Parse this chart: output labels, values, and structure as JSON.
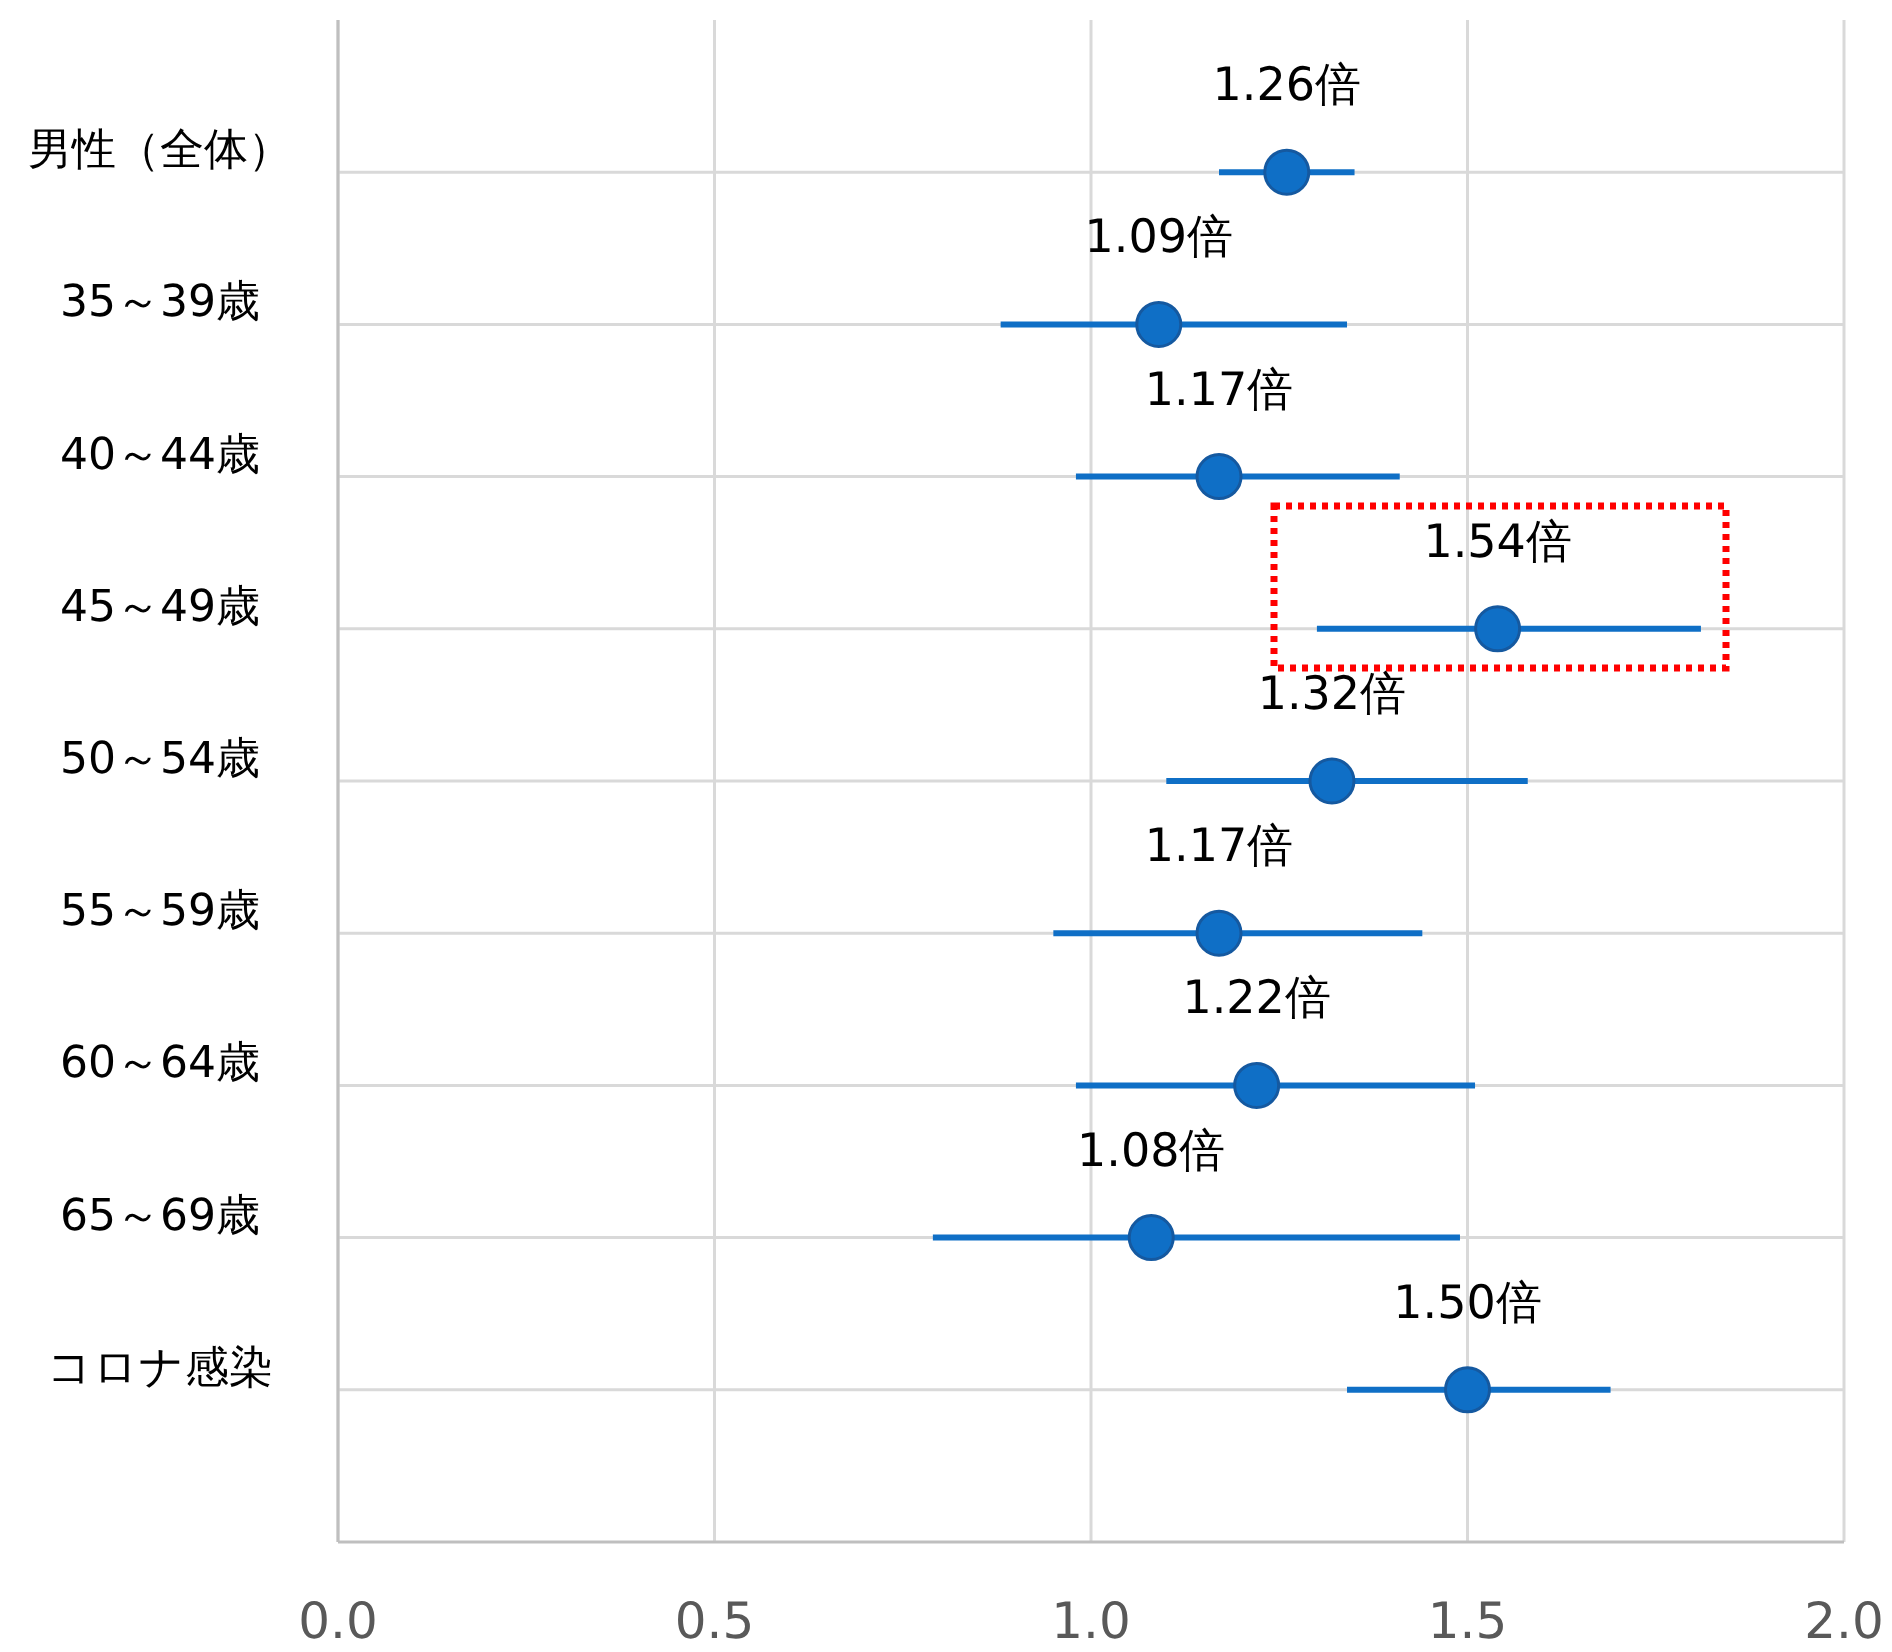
{
  "chart_data": {
    "type": "scatter",
    "orientation": "horizontal",
    "categories": [
      "男性（全体）",
      "35～39歳",
      "40～44歳",
      "45～49歳",
      "50～54歳",
      "55～59歳",
      "60～64歳",
      "65～69歳",
      "コロナ感染"
    ],
    "values": [
      1.26,
      1.09,
      1.17,
      1.54,
      1.32,
      1.17,
      1.22,
      1.08,
      1.5
    ],
    "errors": [
      [
        1.17,
        1.35
      ],
      [
        0.88,
        1.34
      ],
      [
        0.98,
        1.41
      ],
      [
        1.3,
        1.81
      ],
      [
        1.1,
        1.58
      ],
      [
        0.95,
        1.44
      ],
      [
        0.98,
        1.51
      ],
      [
        0.79,
        1.49
      ],
      [
        1.34,
        1.69
      ]
    ],
    "value_labels": [
      "1.26倍",
      "1.09倍",
      "1.17倍",
      "1.54倍",
      "1.32倍",
      "1.17倍",
      "1.22倍",
      "1.08倍",
      "1.50倍"
    ],
    "color": "#0f6fc6",
    "marker": "circle",
    "grid": true,
    "xlim": [
      0,
      2
    ],
    "xticks": [
      {
        "value": 0,
        "label": "0.0"
      },
      {
        "value": 0.5,
        "label": "0.5"
      },
      {
        "value": 1,
        "label": "1.0"
      },
      {
        "value": 1.5,
        "label": "1.5"
      },
      {
        "value": 2,
        "label": "2.0"
      }
    ]
  }
}
